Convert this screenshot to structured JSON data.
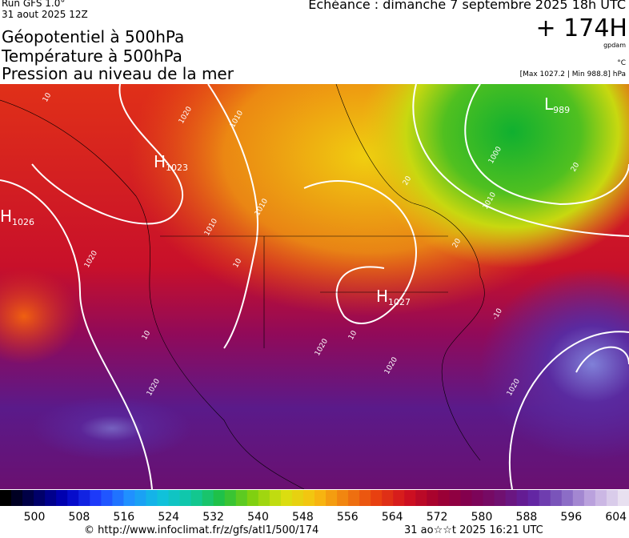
{
  "header": {
    "run": "Run GFS 1.0°",
    "run_date": "31 aout 2025 12Z",
    "valid": "Echéance : dimanche 7 septembre 2025 18h UTC",
    "lead": "+ 174H",
    "unit_geo": "gpdam",
    "unit_temp": "°C",
    "range": "[Max 1027.2 | Min 988.8] hPa",
    "titles": [
      "Géopotentiel à 500hPa",
      "Température à 500hPa",
      "Pression au niveau de la mer"
    ]
  },
  "map": {
    "centers": [
      {
        "letter": "H",
        "value": "1023"
      },
      {
        "letter": "H",
        "value": "1026"
      },
      {
        "letter": "H",
        "value": "1027"
      },
      {
        "letter": "L",
        "value": "989"
      }
    ],
    "contour_labels": [
      "1020",
      "1010",
      "1010",
      "1010",
      "1020",
      "1020",
      "1020",
      "1020",
      "1020",
      "1000",
      "1010",
      "20",
      "20",
      "20",
      "10",
      "10",
      "10",
      "-10",
      "10"
    ]
  },
  "colorbar": {
    "labels": [
      "500",
      "508",
      "516",
      "524",
      "532",
      "540",
      "548",
      "556",
      "564",
      "572",
      "580",
      "588",
      "596",
      "604"
    ]
  },
  "footer": {
    "url": "© http://www.infoclimat.fr/z/gfs/atl1/500/174",
    "generated": "31 ao☆☆t 2025 16:21 UTC"
  }
}
